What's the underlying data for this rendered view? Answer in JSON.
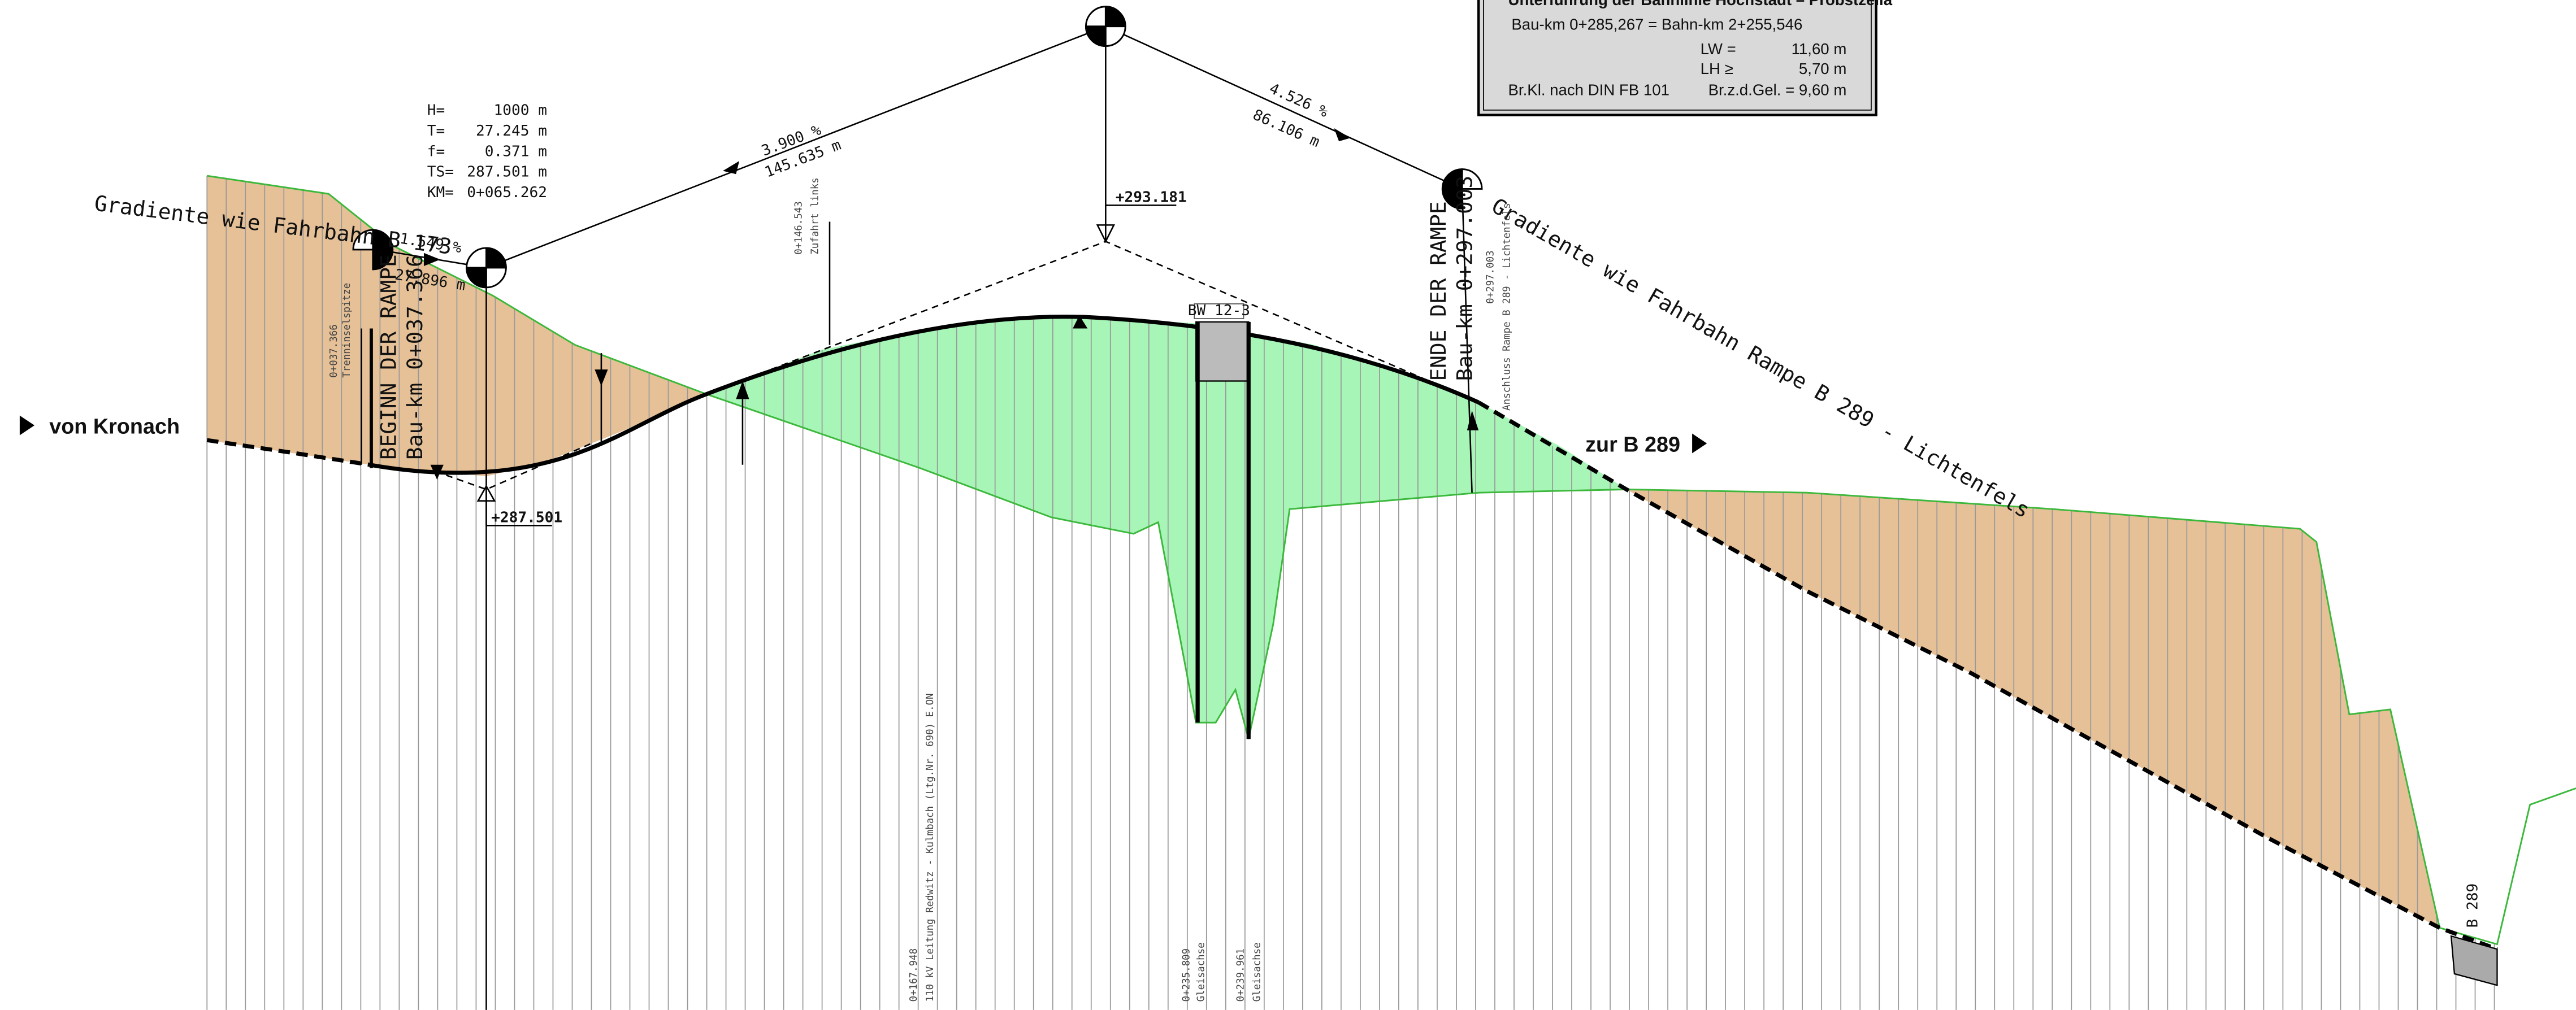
{
  "info_box": {
    "title": "Unterführung der Bahnlinie Hochstadt – Probstzella",
    "line1": "Bau-km 0+285,267 = Bahn-km 2+255,546",
    "rows": [
      [
        "LW =",
        "11,60 m"
      ],
      [
        "LH ≥",
        "5,70 m"
      ],
      [
        "Br.Kl. nach DIN FB 101",
        "Br.z.d.Gel. = 9,60 m"
      ]
    ]
  },
  "curve_parameters": [
    [
      "H=",
      "1000 m"
    ],
    [
      "T=",
      "27.245 m"
    ],
    [
      "f=",
      "0.371 m"
    ],
    [
      "TS=",
      "287.501 m"
    ],
    [
      "KM=",
      "0+065.262"
    ]
  ],
  "labels": {
    "gradient_left": "Gradiente wie Fahrbahn B 173",
    "gradient_right": "Gradiente wie Fahrbahn Rampe B 289 - Lichtenfels",
    "slope_1": "1.549 %",
    "length_1": "27.896 m",
    "slope_2": "3.900 %",
    "length_2": "145.635 m",
    "slope_3": "4.526 %",
    "length_3": "86.106 m",
    "crest_elevation": "+293.181",
    "sag_elevation": "+287.501",
    "start_title": "BEGINN DER RAMPE",
    "start_km": "Bau-km 0+037.366",
    "end_title": "ENDE DER RAMPE",
    "end_km": "Bau-km 0+297.003",
    "from": "von Kronach",
    "to": "zur B 289",
    "structure": "BW 12-3",
    "road": "B 289"
  },
  "stations": [
    [
      "0+037.366",
      "Trenninselspitze"
    ],
    [
      "0+146.543",
      "Zufahrt links"
    ],
    [
      "0+297.003",
      "Anschluss Rampe B 289 - Lichtenfels"
    ],
    [
      "0+167.948",
      "110 kV Leitung Redwitz - Kulmbach (Ltg.Nr. 690) E.ON"
    ],
    [
      "0+235.809",
      "Gleisachse"
    ],
    [
      "0+239.961",
      "Gleisachse"
    ]
  ]
}
